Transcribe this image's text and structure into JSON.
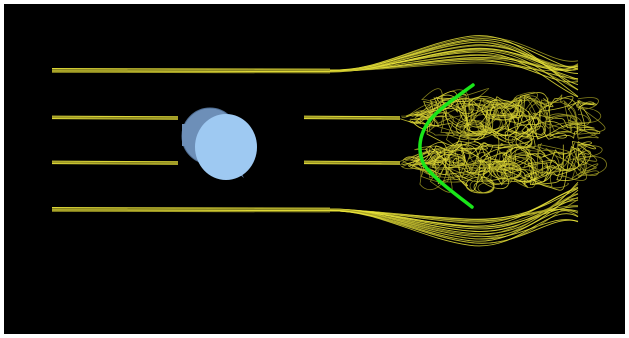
{
  "scene": {
    "background_color": "#000000",
    "frame_color": "#ffffff",
    "streamline_color": "#e8e23a",
    "streamline_dim_color": "#a8a226",
    "cylinder_face_color": "#9ec9f2",
    "cylinder_side_color": "#6d8fb8",
    "cylinder_edge_color": "#4f6d92",
    "seed_line_color": "#19e619",
    "icons": [
      "cylinder-obstacle",
      "streamlines",
      "seed-rake"
    ]
  }
}
